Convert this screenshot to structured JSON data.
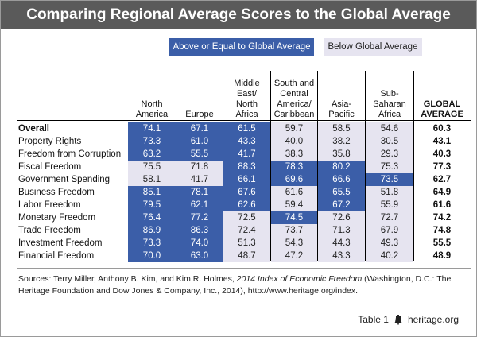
{
  "title": "Comparing Regional Average Scores to the Global Average",
  "legend": {
    "above": "Above or Equal to Global Average",
    "below": "Below Global Average",
    "above_color": "#3b5ea8",
    "below_color": "#e6e4f0"
  },
  "chart_data": {
    "type": "table",
    "title": "Comparing Regional Average Scores to the Global Average",
    "columns": [
      [
        "North",
        "America"
      ],
      [
        "Europe"
      ],
      [
        "Middle",
        "East/",
        "North",
        "Africa"
      ],
      [
        "South and",
        "Central",
        "America/",
        "Caribbean"
      ],
      [
        "Asia-",
        "Pacific"
      ],
      [
        "Sub-",
        "Saharan",
        "Africa"
      ]
    ],
    "global_column": [
      "GLOBAL",
      "AVERAGE"
    ],
    "rows": [
      {
        "label": "Overall",
        "values": [
          "74.1",
          "67.1",
          "61.5",
          "59.7",
          "58.5",
          "54.6"
        ],
        "global": "60.3"
      },
      {
        "label": "Property Rights",
        "values": [
          "73.3",
          "61.0",
          "43.3",
          "40.0",
          "38.2",
          "30.5"
        ],
        "global": "43.1"
      },
      {
        "label": "Freedom from Corruption",
        "values": [
          "63.2",
          "55.5",
          "41.7",
          "38.3",
          "35.8",
          "29.3"
        ],
        "global": "40.3"
      },
      {
        "label": "Fiscal Freedom",
        "values": [
          "75.5",
          "71.8",
          "88.3",
          "78.3",
          "80.2",
          "75.3"
        ],
        "global": "77.3"
      },
      {
        "label": "Government Spending",
        "values": [
          "58.1",
          "41.7",
          "66.1",
          "69.6",
          "66.6",
          "73.5"
        ],
        "global": "62.7"
      },
      {
        "label": "Business Freedom",
        "values": [
          "85.1",
          "78.1",
          "67.6",
          "61.6",
          "65.5",
          "51.8"
        ],
        "global": "64.9"
      },
      {
        "label": "Labor Freedom",
        "values": [
          "79.5",
          "62.1",
          "62.6",
          "59.4",
          "67.2",
          "55.9"
        ],
        "global": "61.6"
      },
      {
        "label": "Monetary Freedom",
        "values": [
          "76.4",
          "77.2",
          "72.5",
          "74.5",
          "72.6",
          "72.7"
        ],
        "global": "74.2"
      },
      {
        "label": "Trade Freedom",
        "values": [
          "86.9",
          "86.3",
          "72.4",
          "73.7",
          "71.3",
          "67.9"
        ],
        "global": "74.8"
      },
      {
        "label": "Investment Freedom",
        "values": [
          "73.3",
          "74.0",
          "51.3",
          "54.3",
          "44.3",
          "49.3"
        ],
        "global": "55.5"
      },
      {
        "label": "Financial Freedom",
        "values": [
          "70.0",
          "63.0",
          "48.7",
          "47.2",
          "43.3",
          "40.2"
        ],
        "global": "48.9"
      }
    ]
  },
  "sources": {
    "prefix": "Sources: Terry Miller, Anthony B. Kim, and Kim R. Holmes, ",
    "italic": "2014 Index of Economic Freedom",
    "suffix": " (Washington, D.C.: The Heritage Foundation and Dow Jones & Company, Inc., 2014), http://www.heritage.org/index."
  },
  "footer": {
    "table_label": "Table 1",
    "logo_icon": "liberty-bell-icon",
    "site": "heritage.org"
  }
}
